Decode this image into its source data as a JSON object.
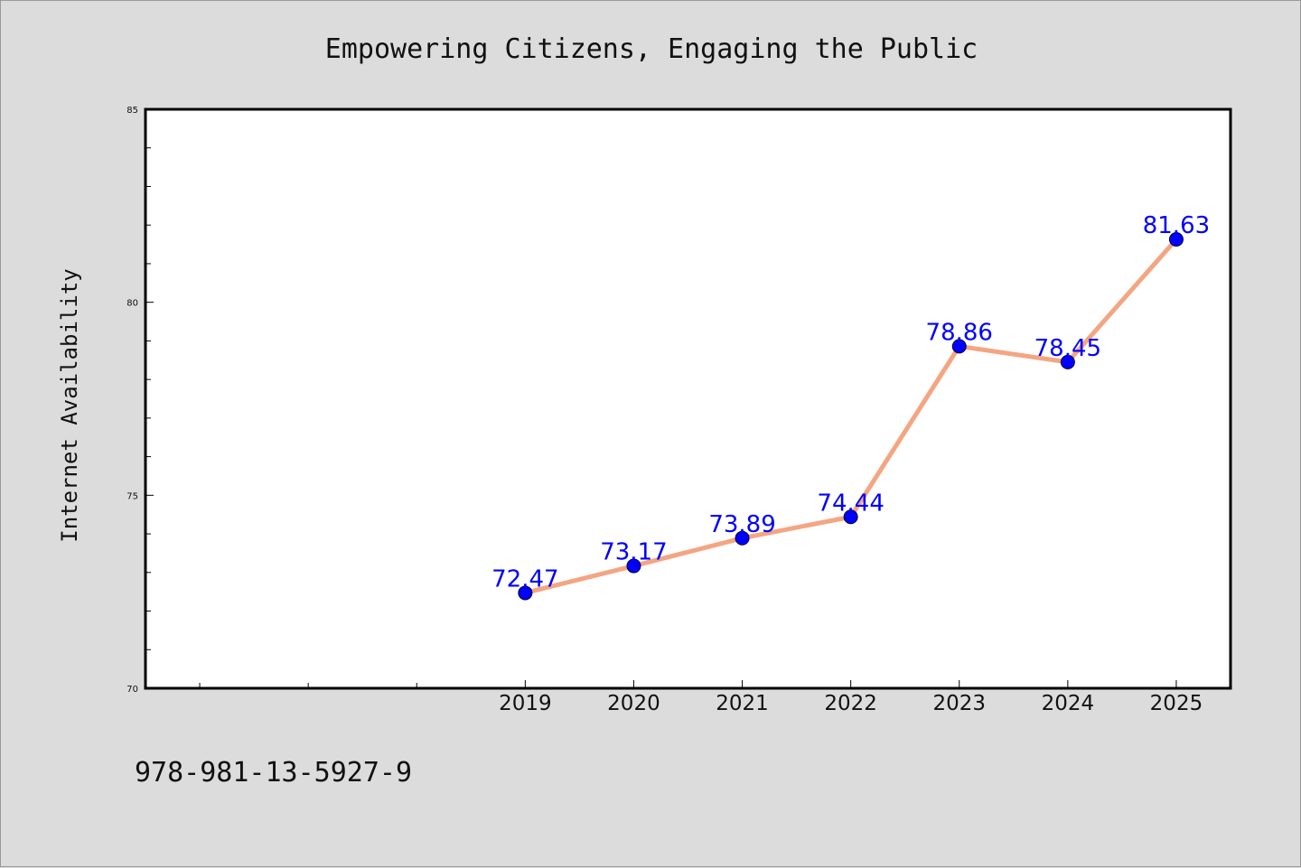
{
  "chart_data": {
    "type": "line",
    "title": "Empowering Citizens, Engaging the Public",
    "ylabel": "Internet Availability",
    "xlabel": "",
    "categories": [
      "2019",
      "2020",
      "2021",
      "2022",
      "2023",
      "2024",
      "2025"
    ],
    "series": [
      {
        "values": [
          72.47,
          73.17,
          73.89,
          74.44,
          78.86,
          78.45,
          81.63
        ],
        "line_color": "#f4a582",
        "marker_color": "#0000ff"
      }
    ],
    "data_labels": [
      "72.47",
      "73.17",
      "73.89",
      "74.44",
      "78.86",
      "78.45",
      "81.63"
    ],
    "ylim": [
      70,
      85
    ],
    "yticks": [
      70,
      75,
      80,
      85
    ],
    "ytick_labels": [
      "70",
      "75",
      "80",
      "85"
    ],
    "x_slot_count": 10,
    "x_first_category_slot": 3,
    "grid": false,
    "footer_text": "978-981-13-5927-9",
    "colors": {
      "background": "#dcdcdc",
      "plot_background": "#ffffff",
      "line": "#f4a582",
      "marker": "#0000ff",
      "data_label": "#0000ff"
    }
  }
}
